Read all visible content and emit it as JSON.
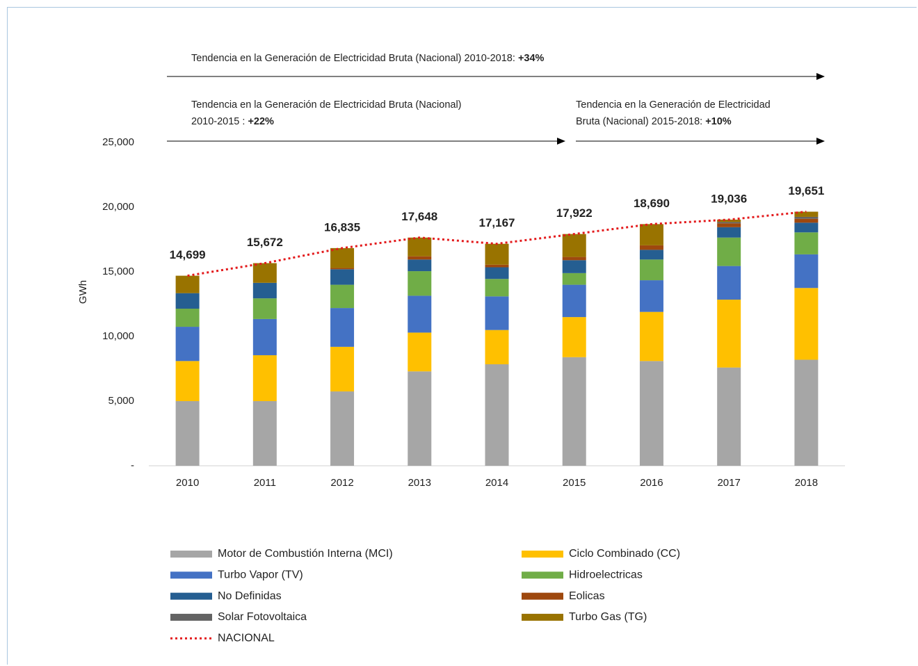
{
  "chart_data": {
    "type": "bar",
    "stacked": true,
    "annotations": [
      {
        "lines": [
          "Tendencia en la Generación de Electricidad Bruta (Nacional) 2010-2018: "
        ],
        "emphasis": "+34%"
      },
      {
        "lines": [
          "Tendencia en la Generación de Electricidad Bruta (Nacional)",
          "2010-2015 : "
        ],
        "emphasis": "+22%"
      },
      {
        "lines": [
          "Tendencia en la Generación de Electricidad",
          "Bruta (Nacional) 2015-2018: "
        ],
        "emphasis": "+10%"
      }
    ],
    "y_label": "GWh",
    "categories": [
      "2010",
      "2011",
      "2012",
      "2013",
      "2014",
      "2015",
      "2016",
      "2017",
      "2018"
    ],
    "ylim": [
      0,
      25000
    ],
    "yticks": [
      {
        "value": 0,
        "label": "-"
      },
      {
        "value": 5000,
        "label": "5,000"
      },
      {
        "value": 10000,
        "label": "10,000"
      },
      {
        "value": 15000,
        "label": "15,000"
      },
      {
        "value": 20000,
        "label": "20,000"
      },
      {
        "value": 25000,
        "label": "25,000"
      }
    ],
    "grid": false,
    "legend": "bottom",
    "series": [
      {
        "name": "Motor de Combustión Interna (MCI)",
        "color": "#a6a6a6",
        "values": [
          5000,
          5000,
          5750,
          7300,
          7850,
          8400,
          8100,
          7600,
          8200
        ]
      },
      {
        "name": "Ciclo Combinado (CC)",
        "color": "#ffc000",
        "values": [
          3100,
          3550,
          3450,
          3000,
          2650,
          3100,
          3800,
          5250,
          5550
        ]
      },
      {
        "name": "Turbo Vapor (TV)",
        "color": "#4472c4",
        "values": [
          2650,
          2800,
          3000,
          2850,
          2600,
          2500,
          2450,
          2600,
          2600
        ]
      },
      {
        "name": "Hidroelectricas",
        "color": "#70ad47",
        "values": [
          1400,
          1600,
          1800,
          1900,
          1350,
          900,
          1600,
          2200,
          1700
        ]
      },
      {
        "name": "No Definidas",
        "color": "#255e91",
        "values": [
          1200,
          1200,
          1200,
          900,
          900,
          1000,
          750,
          800,
          750
        ]
      },
      {
        "name": "Eolicas",
        "color": "#9e480e",
        "values": [
          0,
          0,
          100,
          250,
          200,
          250,
          350,
          300,
          300
        ]
      },
      {
        "name": "Solar Fotovoltaica",
        "color": "#636363",
        "values": [
          0,
          0,
          0,
          0,
          0,
          0,
          0,
          100,
          150
        ]
      },
      {
        "name": "Turbo Gas (TG)",
        "color": "#997300",
        "values": [
          1349,
          1522,
          1535,
          1448,
          1617,
          1772,
          1640,
          186,
          401
        ]
      },
      {
        "name": "NACIONAL",
        "color": "#e31a1c",
        "type": "line",
        "values": [
          14699,
          15672,
          16835,
          17648,
          17167,
          17922,
          18690,
          19036,
          19651
        ],
        "value_labels": [
          "14,699",
          "15,672",
          "16,835",
          "17,648",
          "17,167",
          "17,922",
          "18,690",
          "19,036",
          "19,651"
        ]
      }
    ]
  }
}
